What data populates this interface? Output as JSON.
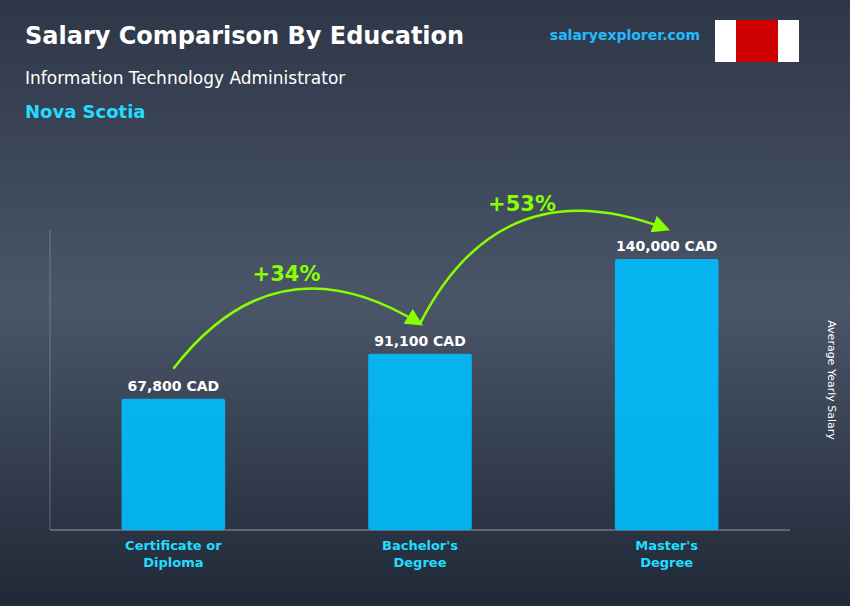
{
  "chart_data": {
    "type": "bar",
    "title": "Salary Comparison By Education",
    "subtitle": "Information Technology Administrator",
    "annotations": [
      "Nova Scotia",
      "salaryexplorer.com"
    ],
    "ylabel": "Average Yearly Salary",
    "categories": [
      "Certificate or\nDiploma",
      "Bachelor's\nDegree",
      "Master's\nDegree"
    ],
    "values": [
      67800,
      91100,
      140000
    ],
    "value_labels": [
      "67,800 CAD",
      "91,100 CAD",
      "140,000 CAD"
    ],
    "change_labels": [
      "+34%",
      "+53%"
    ],
    "color": "#00BFFF",
    "ylim": [
      0,
      155000
    ],
    "data_labels": true,
    "tick_labels": false,
    "grid": false
  }
}
